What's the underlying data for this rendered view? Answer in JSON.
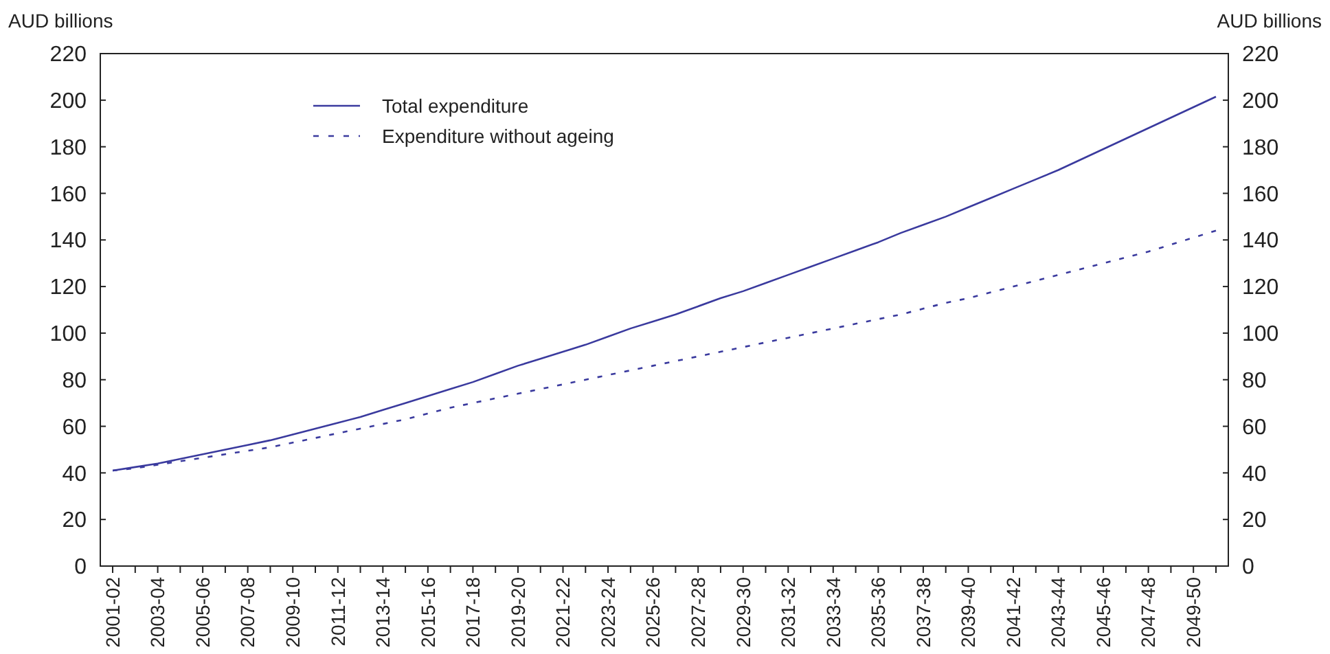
{
  "chart_data": {
    "type": "line",
    "ylabel": "AUD billions",
    "y2label": "AUD billions",
    "categories": [
      "2001-02",
      null,
      "2003-04",
      null,
      "2005-06",
      null,
      "2007-08",
      null,
      "2009-10",
      null,
      "2011-12",
      null,
      "2013-14",
      null,
      "2015-16",
      null,
      "2017-18",
      null,
      "2019-20",
      null,
      "2021-22",
      null,
      "2023-24",
      null,
      "2025-26",
      null,
      "2027-28",
      null,
      "2029-30",
      null,
      "2031-32",
      null,
      "2033-34",
      null,
      "2035-36",
      null,
      "2037-38",
      null,
      "2039-40",
      null,
      "2041-42",
      null,
      "2043-44",
      null,
      "2045-46",
      null,
      "2047-48",
      null,
      "2049-50",
      null
    ],
    "series": [
      {
        "name": "Total expenditure",
        "color": "#3a3a9e",
        "line_style": "solid",
        "values": [
          41,
          42.5,
          44,
          46,
          48,
          50,
          52,
          54,
          56.5,
          59,
          61.5,
          64,
          67,
          70,
          73,
          76,
          79,
          82.5,
          86,
          89,
          92,
          95,
          98.5,
          102,
          105,
          108,
          111.5,
          115,
          118,
          121.5,
          125,
          128.5,
          132,
          135.5,
          139,
          143,
          146.5,
          150,
          154,
          158,
          162,
          166,
          170,
          174.5,
          179,
          183.5,
          188,
          192.5,
          197,
          201.5
        ]
      },
      {
        "name": "Expenditure without ageing",
        "color": "#3a3a9e",
        "line_style": "dashed",
        "values": [
          41,
          42,
          43.5,
          45,
          46.5,
          48,
          49.5,
          51,
          53,
          55,
          57,
          59,
          61,
          63,
          65.5,
          68,
          70,
          72,
          74,
          76,
          78,
          80,
          82,
          84,
          86,
          88,
          90,
          92,
          94,
          96,
          98,
          100,
          102,
          104,
          106,
          108,
          110.5,
          113,
          115,
          117.5,
          120,
          122.5,
          125,
          127.5,
          130,
          132.5,
          135,
          138,
          141,
          144
        ]
      }
    ],
    "ylim": [
      0,
      220
    ],
    "yticks": [
      0,
      20,
      40,
      60,
      80,
      100,
      120,
      140,
      160,
      180,
      200,
      220
    ],
    "y2lim": [
      0,
      220
    ],
    "y2ticks": [
      0,
      20,
      40,
      60,
      80,
      100,
      120,
      140,
      160,
      180,
      200,
      220
    ],
    "grid": false,
    "legend": "top left"
  }
}
